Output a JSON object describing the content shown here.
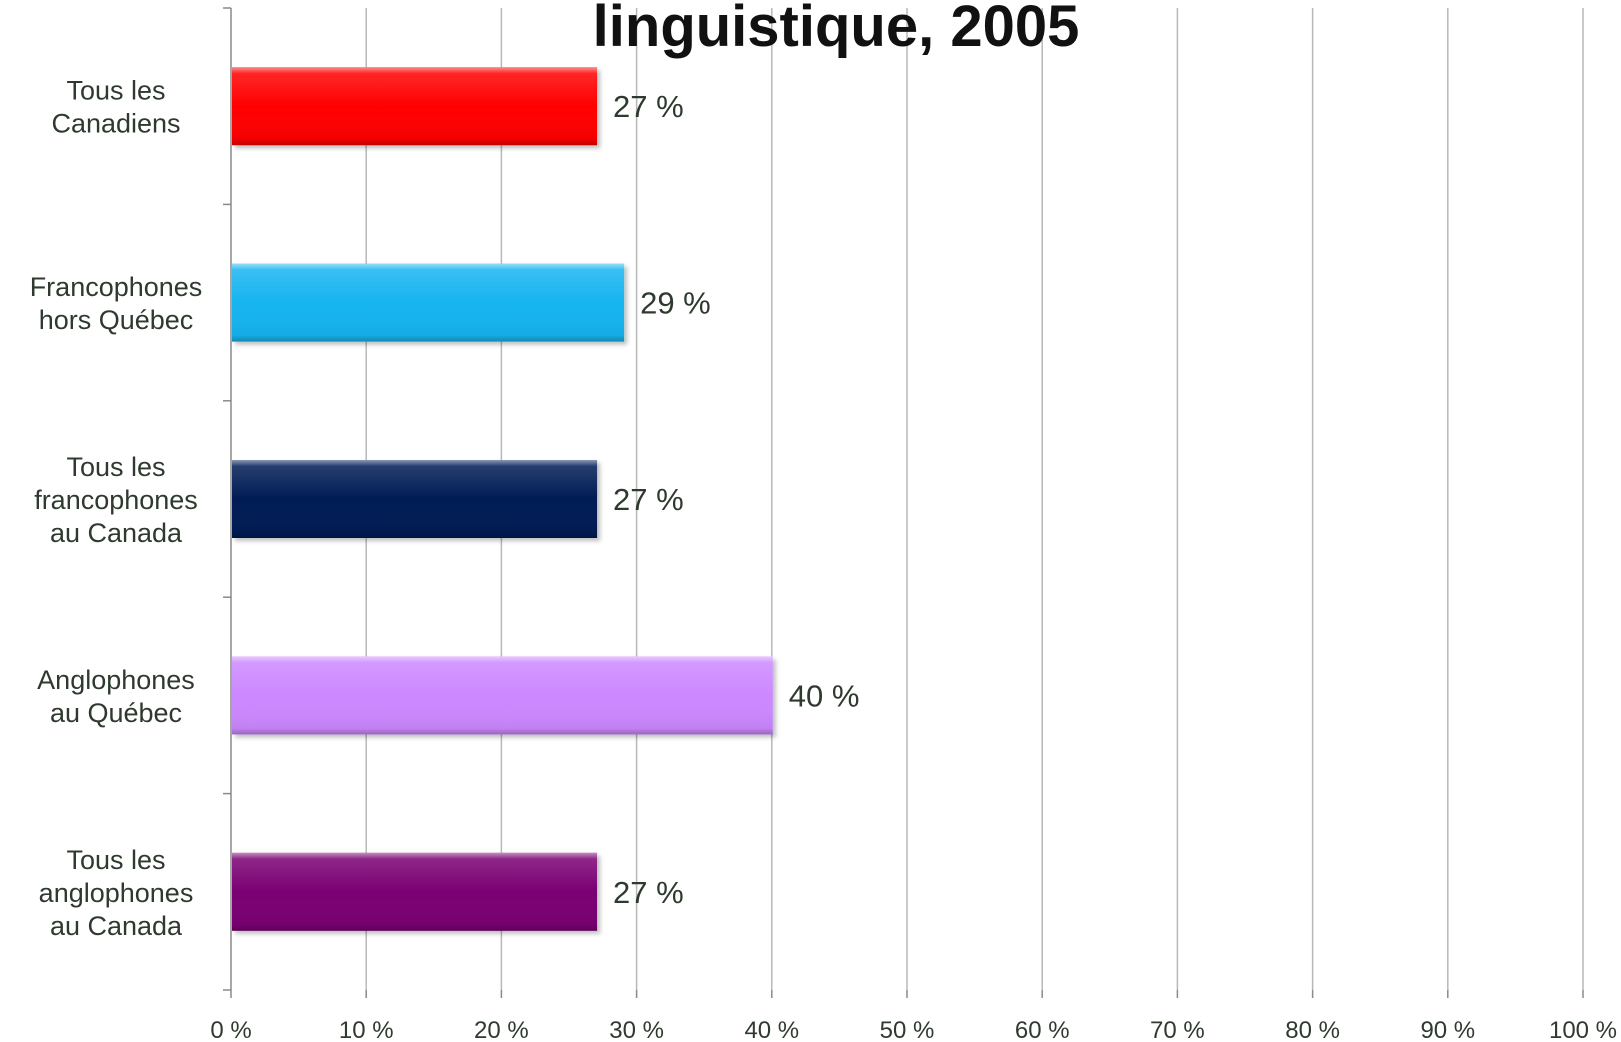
{
  "chart_data": {
    "type": "bar",
    "orientation": "horizontal",
    "title": "linguistique, 2005",
    "xlabel": "",
    "ylabel": "",
    "xlim": [
      0,
      100
    ],
    "grid": true,
    "legend": "none",
    "ticks": [
      "0 %",
      "10 %",
      "20 %",
      "30 %",
      "40 %",
      "50 %",
      "60 %",
      "70 %",
      "80 %",
      "90 %",
      "100 %"
    ],
    "tick_values": [
      0,
      10,
      20,
      30,
      40,
      50,
      60,
      70,
      80,
      90,
      100
    ],
    "categories": [
      [
        "Tous les",
        "Canadiens"
      ],
      [
        "Francophones",
        "hors Québec"
      ],
      [
        "Tous les",
        "francophones",
        "au Canada"
      ],
      [
        "Anglophones",
        "au Québec"
      ],
      [
        "Tous les",
        "anglophones",
        "au Canada"
      ]
    ],
    "values": [
      27,
      29,
      27,
      40,
      27
    ],
    "value_labels": [
      "27 %",
      "29 %",
      "27 %",
      "40 %",
      "27 %"
    ],
    "colors": [
      "#ff0000",
      "#14b4f0",
      "#001a55",
      "#cc88ff",
      "#7a0073"
    ]
  }
}
